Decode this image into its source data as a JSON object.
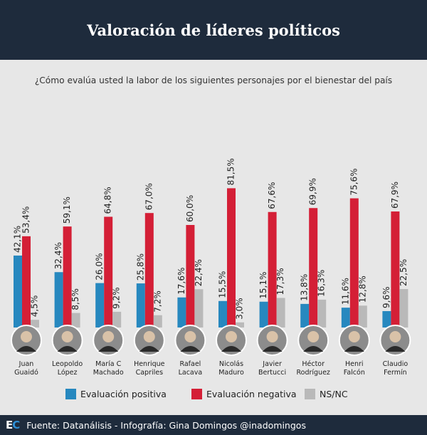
{
  "header": {
    "title": "Valoración de líderes políticos"
  },
  "footer": {
    "logo_text_e": "E",
    "logo_text_c": "C",
    "source": "Fuente: Datanálisis - Infografía: Gina Domingos @inadomingos"
  },
  "chart_data": {
    "type": "bar",
    "title": "Valoración de líderes políticos",
    "subtitle": "¿Cómo evalúa usted la labor de los siguientes personajes por el bienestar del país",
    "categories": [
      [
        "Juan",
        "Guaidó"
      ],
      [
        "Leopoldo",
        "López"
      ],
      [
        "María C",
        "Machado"
      ],
      [
        "Henrique",
        "Capriles"
      ],
      [
        "Rafael",
        "Lacava"
      ],
      [
        "Nicolás",
        "Maduro"
      ],
      [
        "Javier",
        "Bertucci"
      ],
      [
        "Héctor",
        "Rodríguez"
      ],
      [
        "Henri",
        "Falcón"
      ],
      [
        "Claudio",
        "Fermín"
      ]
    ],
    "series": [
      {
        "name": "Evaluación positiva",
        "color": "#2788bf",
        "values": [
          42.1,
          32.4,
          26.0,
          25.8,
          17.6,
          15.5,
          15.1,
          13.8,
          11.6,
          9.6
        ],
        "labels": [
          "42,1%",
          "32,4%",
          "26,0%",
          "25,8%",
          "17,6%",
          "15,5%",
          "15,1%",
          "13,8%",
          "11,6%",
          "9,6%"
        ]
      },
      {
        "name": "Evaluación negativa",
        "color": "#d41f36",
        "values": [
          53.4,
          59.1,
          64.8,
          67.0,
          60.0,
          81.5,
          67.6,
          69.9,
          75.6,
          67.9
        ],
        "labels": [
          "53,4%",
          "59,1%",
          "64,8%",
          "67,0%",
          "60,0%",
          "81,5%",
          "67,6%",
          "69,9%",
          "75,6%",
          "67,9%"
        ]
      },
      {
        "name": "NS/NC",
        "color": "#b9b9b9",
        "values": [
          4.5,
          8.5,
          9.2,
          7.2,
          22.4,
          3.0,
          17.3,
          16.3,
          12.8,
          22.5
        ],
        "labels": [
          "4,5%",
          "8,5%",
          "9,2%",
          "7,2%",
          "22,4%",
          "3,0%",
          "17,3%",
          "16,3%",
          "12,8%",
          "22,5%"
        ]
      }
    ],
    "ylim": [
      0,
      100
    ],
    "xlabel": "",
    "ylabel": "",
    "legend_position": "bottom"
  }
}
